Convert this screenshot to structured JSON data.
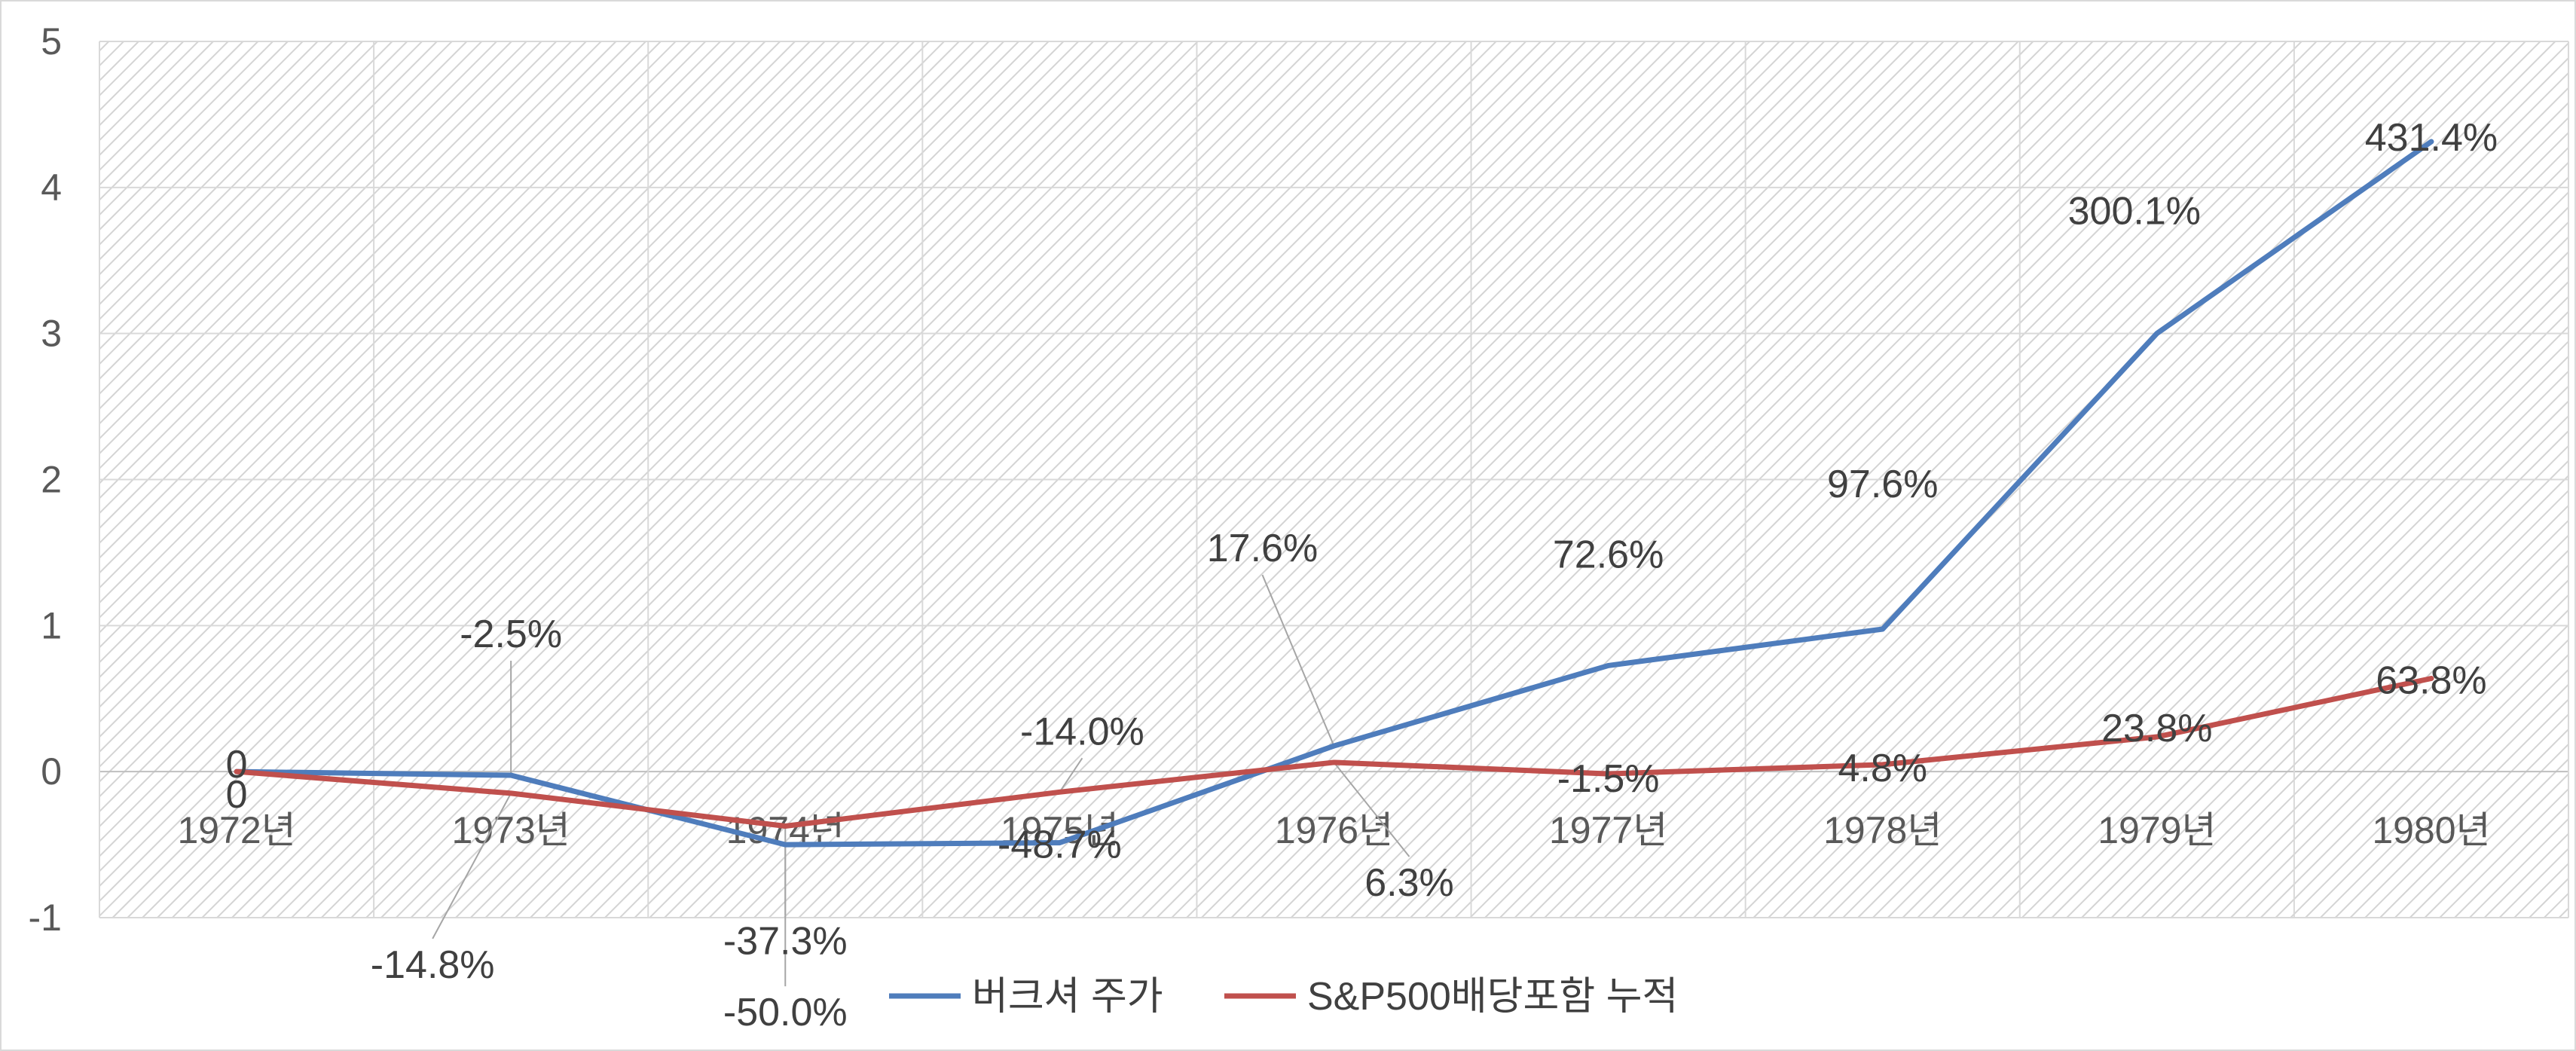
{
  "chart_data": {
    "type": "line",
    "title": "",
    "xlabel": "",
    "ylabel": "",
    "categories": [
      "1972년",
      "1973년",
      "1974년",
      "1975년",
      "1976년",
      "1977년",
      "1978년",
      "1979년",
      "1980년"
    ],
    "ylim": [
      -1,
      5
    ],
    "yticks": [
      "-1",
      "0",
      "1",
      "2",
      "3",
      "4",
      "5"
    ],
    "grid": true,
    "legend_position": "bottom",
    "series": [
      {
        "name": "버크셔 주가",
        "color": "#4F7DBC",
        "values": [
          0,
          -0.025,
          -0.5,
          -0.487,
          0.176,
          0.726,
          0.976,
          3.001,
          4.314
        ],
        "labels": [
          "0",
          "-2.5%",
          "-50.0%",
          "-48.7%",
          "17.6%",
          "72.6%",
          "97.6%",
          "300.1%",
          "431.4%"
        ]
      },
      {
        "name": "S&P500배당포함 누적",
        "color": "#C0504D",
        "values": [
          0,
          -0.148,
          -0.373,
          -0.14,
          0.063,
          -0.015,
          0.048,
          0.238,
          0.638
        ],
        "labels": [
          "0",
          "-14.8%",
          "-37.3%",
          "-14.0%",
          "6.3%",
          "-1.5%",
          "4.8%",
          "23.8%",
          "63.8%"
        ]
      }
    ]
  }
}
